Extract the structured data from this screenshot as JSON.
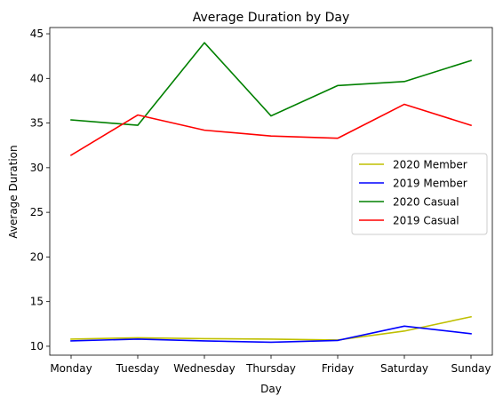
{
  "chart_data": {
    "type": "line",
    "title": "Average Duration by Day",
    "xlabel": "Day",
    "ylabel": "Average Duration",
    "categories": [
      "Monday",
      "Tuesday",
      "Wednesday",
      "Thursday",
      "Friday",
      "Saturday",
      "Sunday"
    ],
    "yticks": [
      10,
      15,
      20,
      25,
      30,
      35,
      40,
      45
    ],
    "ylim": [
      9.0,
      45.7
    ],
    "grid": false,
    "legend_position": "center-right",
    "series": [
      {
        "name": "2020 Member",
        "color": "#bfbf00",
        "values": [
          10.8,
          10.95,
          10.85,
          10.8,
          10.7,
          11.7,
          13.3
        ]
      },
      {
        "name": "2019 Member",
        "color": "#0000ff",
        "values": [
          10.6,
          10.8,
          10.6,
          10.45,
          10.65,
          12.25,
          11.4
        ]
      },
      {
        "name": "2020 Casual",
        "color": "#008000",
        "values": [
          35.35,
          34.75,
          44.0,
          35.8,
          39.2,
          39.65,
          42.0
        ]
      },
      {
        "name": "2019 Casual",
        "color": "#ff0000",
        "values": [
          31.4,
          35.9,
          34.2,
          33.55,
          33.3,
          37.1,
          34.75
        ]
      }
    ]
  }
}
